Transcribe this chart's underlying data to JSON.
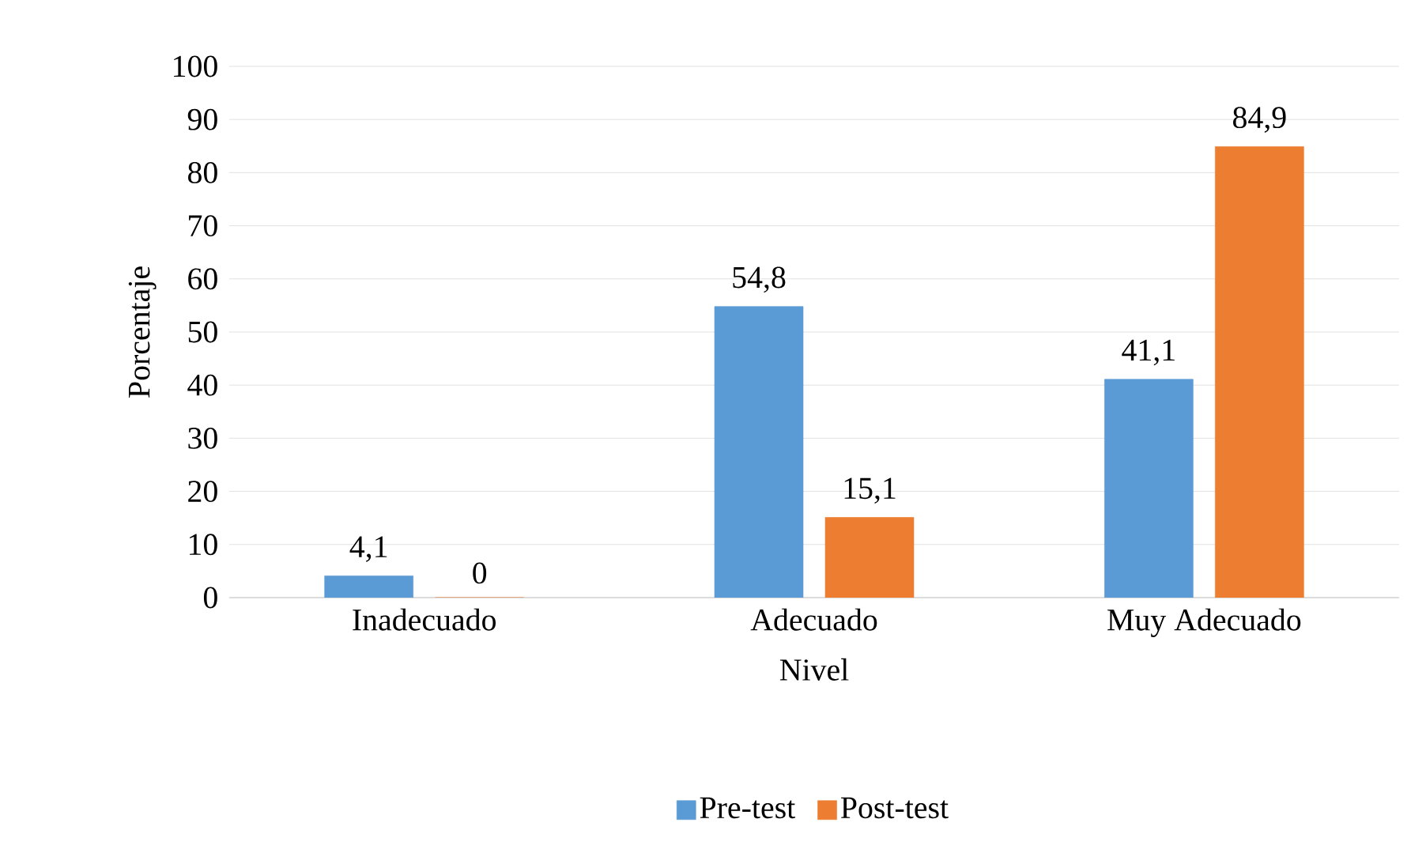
{
  "chart_data": {
    "type": "bar",
    "xlabel": "Nivel",
    "ylabel": "Porcentaje",
    "categories": [
      "Inadecuado",
      "Adecuado",
      "Muy Adecuado"
    ],
    "series": [
      {
        "name": "Pre-test",
        "color": "#5b9bd5",
        "values": [
          4.1,
          54.8,
          41.1
        ],
        "value_labels": [
          "4,1",
          "54,8",
          "41,1"
        ]
      },
      {
        "name": "Post-test",
        "color": "#ed7d31",
        "values": [
          0,
          15.1,
          84.9
        ],
        "value_labels": [
          "0",
          "15,1",
          "84,9"
        ]
      }
    ],
    "ylim": [
      0,
      100
    ],
    "yticks": [
      0,
      10,
      20,
      30,
      40,
      50,
      60,
      70,
      80,
      90,
      100
    ],
    "grid": "y",
    "legend": "bottom"
  }
}
